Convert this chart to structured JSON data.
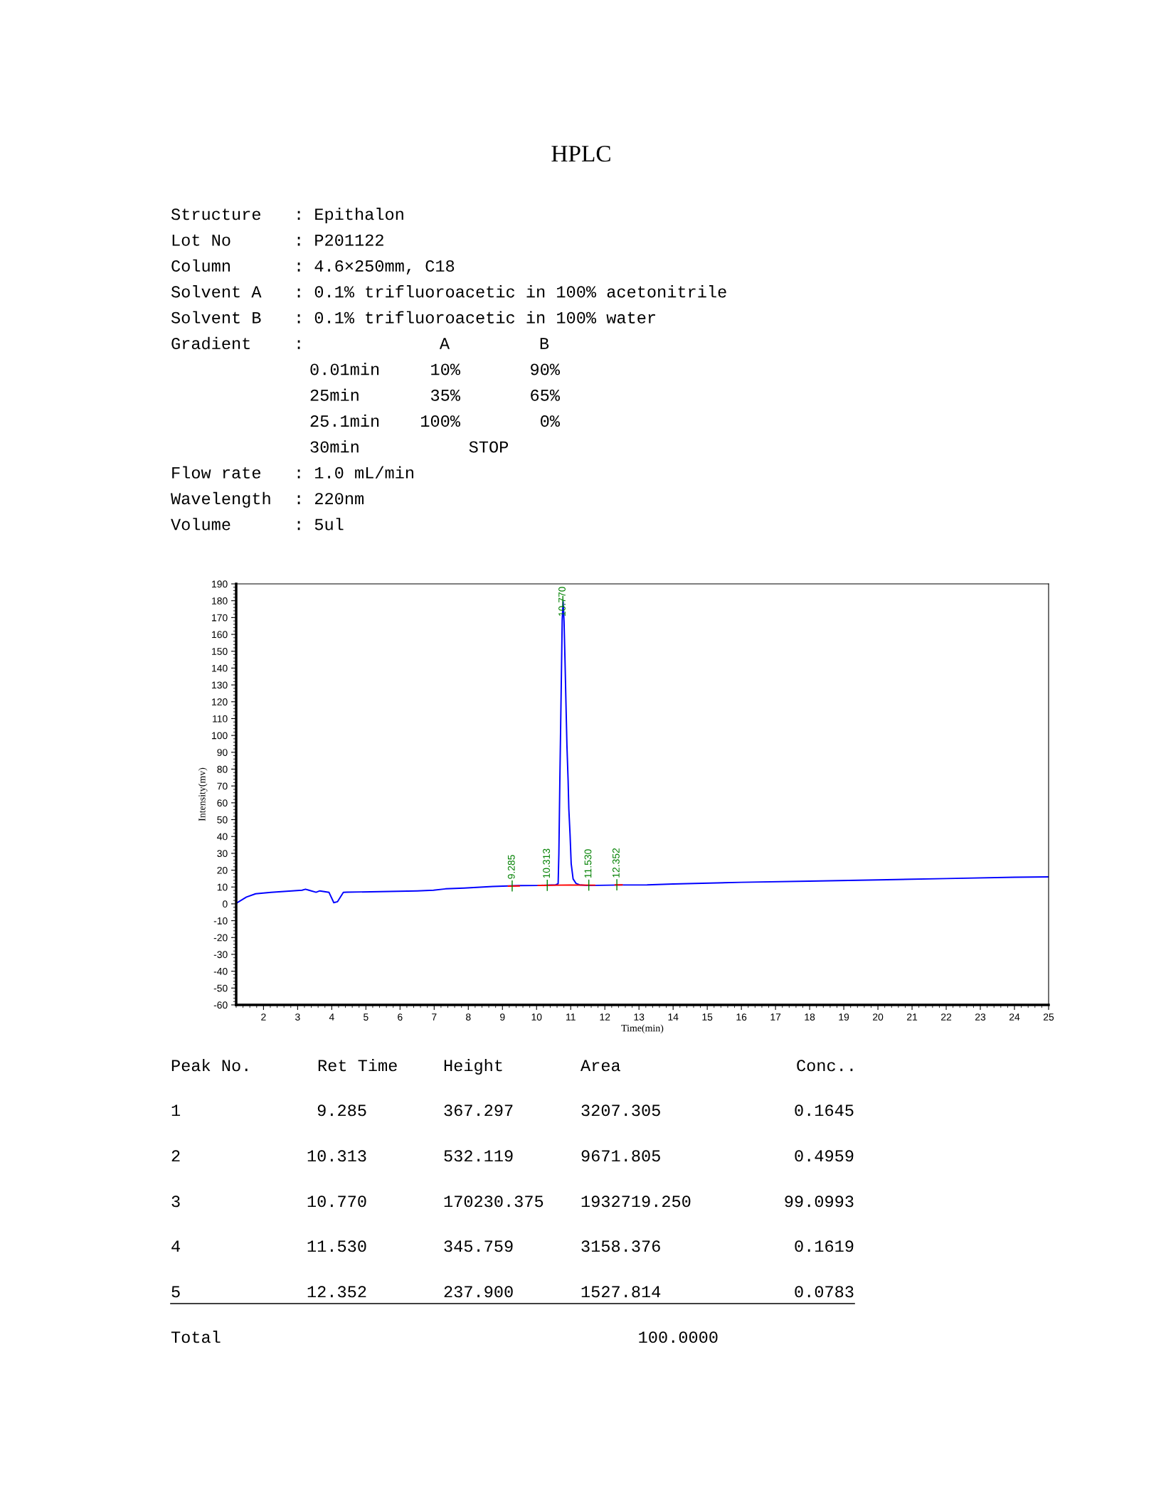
{
  "chart_data": {
    "type": "line",
    "title": "HPLC",
    "xlabel": "Time(min)",
    "ylabel": "Intensity(mv)",
    "xlim": [
      1.2,
      25
    ],
    "xticks": [
      2,
      3,
      4,
      5,
      6,
      7,
      8,
      9,
      10,
      11,
      12,
      13,
      14,
      15,
      16,
      17,
      18,
      19,
      20,
      21,
      22,
      23,
      24,
      25
    ],
    "ylim": [
      -60,
      190
    ],
    "yticks": [
      -60,
      -50,
      -40,
      -30,
      -20,
      -10,
      0,
      10,
      20,
      30,
      40,
      50,
      60,
      70,
      80,
      90,
      100,
      110,
      120,
      130,
      140,
      150,
      160,
      170,
      180,
      190
    ],
    "grid": false,
    "series": [
      {
        "color": "#0000ff",
        "x": [
          1.2,
          1.5,
          1.77,
          2.22,
          3.13,
          3.23,
          3.33,
          3.54,
          3.65,
          3.92,
          4.06,
          4.17,
          4.34,
          4.44,
          6.5,
          6.98,
          7.33,
          7.88,
          8.71,
          9.49,
          10.04,
          10.56,
          10.632,
          10.653,
          10.681,
          10.722,
          10.751,
          10.778,
          10.805,
          10.834,
          10.862,
          10.889,
          10.924,
          10.945,
          10.98,
          11.014,
          11.07,
          11.153,
          11.258,
          11.502,
          12.5,
          13.24,
          14,
          16,
          18,
          20,
          22,
          24,
          25
        ],
        "values": [
          0.3,
          4.0,
          6.0,
          6.8,
          8.1,
          8.7,
          8.1,
          6.9,
          7.7,
          6.8,
          0.7,
          1.3,
          6.8,
          6.9,
          7.7,
          8.1,
          8.9,
          9.4,
          10.3,
          10.8,
          10.9,
          11.3,
          12.0,
          29.6,
          71.8,
          128.1,
          168.9,
          179.5,
          167.5,
          143.6,
          118.2,
          94.3,
          73.2,
          56.3,
          41.6,
          23.9,
          14.8,
          12.2,
          11.3,
          10.9,
          11.2,
          11.3,
          11.8,
          12.8,
          13.5,
          14.2,
          15.0,
          15.8,
          16.0
        ]
      },
      {
        "color": "#ff0000",
        "x": [
          9.17,
          9.5,
          9.51,
          10.04,
          10.98,
          11.71,
          11.72,
          12.3,
          12.51
        ],
        "values": [
          10.5,
          10.6,
          null,
          10.9,
          11.2,
          11.1,
          null,
          11.3,
          11.3
        ]
      }
    ],
    "annotations": [
      {
        "text": "9.285",
        "x": 9.285,
        "y": 10.6
      },
      {
        "text": "10.313",
        "x": 10.313,
        "y": 11.0
      },
      {
        "text": "10.770",
        "x": 10.77,
        "y": 179.5
      },
      {
        "text": "11.530",
        "x": 11.53,
        "y": 11.1
      },
      {
        "text": "12.352",
        "x": 12.352,
        "y": 11.3
      },
      "Structure",
      ": Epithalon",
      "Lot No",
      ": P201122",
      "Column",
      ": 4.6×250mm, C18",
      "Solvent A",
      ": 0.1% trifluoroacetic in 100% acetonitrile",
      "Solvent B",
      ": 0.1% trifluoroacetic in 100% water",
      "Gradient",
      ":",
      "A",
      "B",
      "0.01min",
      "10%",
      "90%",
      "25min",
      "35%",
      "65%",
      "25.1min",
      "100%",
      "0%",
      "30min",
      "STOP",
      "Flow rate",
      ": 1.0 mL/min",
      "Wavelength",
      ": 220nm",
      "Volume",
      ": 5ul",
      "Peak No.",
      "Ret Time",
      "Height",
      "Area",
      "Conc..",
      "1",
      "9.285",
      "367.297",
      "3207.305",
      "0.1645",
      "2",
      "10.313",
      "532.119",
      "9671.805",
      "0.4959",
      "3",
      "10.770",
      "170230.375",
      "1932719.250",
      "99.0993",
      "4",
      "11.530",
      "345.759",
      "3158.376",
      "0.1619",
      "5",
      "12.352",
      "237.900",
      "1527.814",
      "0.0783",
      "Total",
      "100.0000"
    ]
  }
}
